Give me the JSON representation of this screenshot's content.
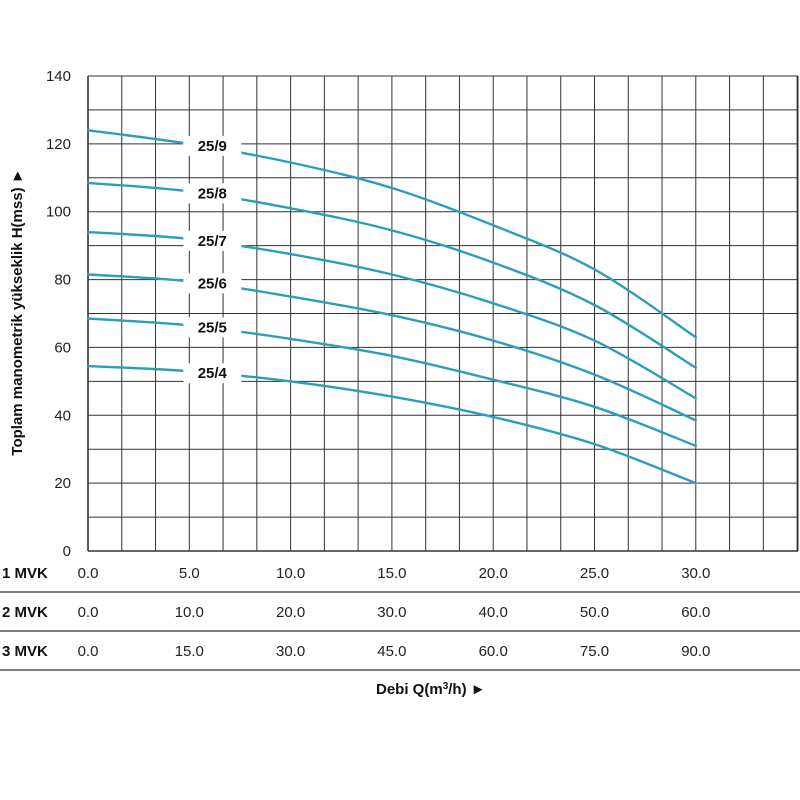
{
  "chart_data": {
    "type": "line",
    "ylabel": "Toplam manometrik yükseklik H(mss) ►",
    "xlabel": {
      "prefix": "Debi Q(m",
      "sup": "3",
      "suffix": "/h) ►"
    },
    "ylim": [
      0,
      140
    ],
    "y_ticks": [
      0,
      20,
      40,
      60,
      80,
      100,
      120,
      140
    ],
    "xlim": [
      0,
      35
    ],
    "grid": true,
    "color": "#2a9fb9",
    "x_rows": [
      {
        "name": "1 MVK",
        "ticks": [
          "0.0",
          "5.0",
          "10.0",
          "15.0",
          "20.0",
          "25.0",
          "30.0"
        ]
      },
      {
        "name": "2 MVK",
        "ticks": [
          "0.0",
          "10.0",
          "20.0",
          "30.0",
          "40.0",
          "50.0",
          "60.0"
        ]
      },
      {
        "name": "3 MVK",
        "ticks": [
          "0.0",
          "15.0",
          "30.0",
          "45.0",
          "60.0",
          "75.0",
          "90.0"
        ]
      }
    ],
    "series": [
      {
        "name": "25/9",
        "x": [
          0,
          5,
          10,
          15,
          20,
          25,
          30
        ],
        "y": [
          124,
          120,
          114.5,
          107,
          96,
          83,
          63
        ]
      },
      {
        "name": "25/8",
        "x": [
          0,
          5,
          10,
          15,
          20,
          25,
          30
        ],
        "y": [
          108.5,
          106,
          101,
          94.5,
          85,
          72.5,
          54
        ]
      },
      {
        "name": "25/7",
        "x": [
          0,
          5,
          10,
          15,
          20,
          25,
          30
        ],
        "y": [
          94,
          92,
          87.5,
          81.5,
          73,
          62,
          45
        ]
      },
      {
        "name": "25/6",
        "x": [
          0,
          5,
          10,
          15,
          20,
          25,
          30
        ],
        "y": [
          81.5,
          79.5,
          75,
          69.5,
          62,
          52,
          38.5
        ]
      },
      {
        "name": "25/5",
        "x": [
          0,
          5,
          10,
          15,
          20,
          25,
          30
        ],
        "y": [
          68.5,
          66.5,
          62.5,
          57.5,
          50.5,
          42.5,
          31
        ]
      },
      {
        "name": "25/4",
        "x": [
          0,
          5,
          10,
          15,
          20,
          25,
          30
        ],
        "y": [
          54.5,
          53,
          50,
          45.5,
          39.5,
          31.5,
          20
        ]
      }
    ]
  }
}
